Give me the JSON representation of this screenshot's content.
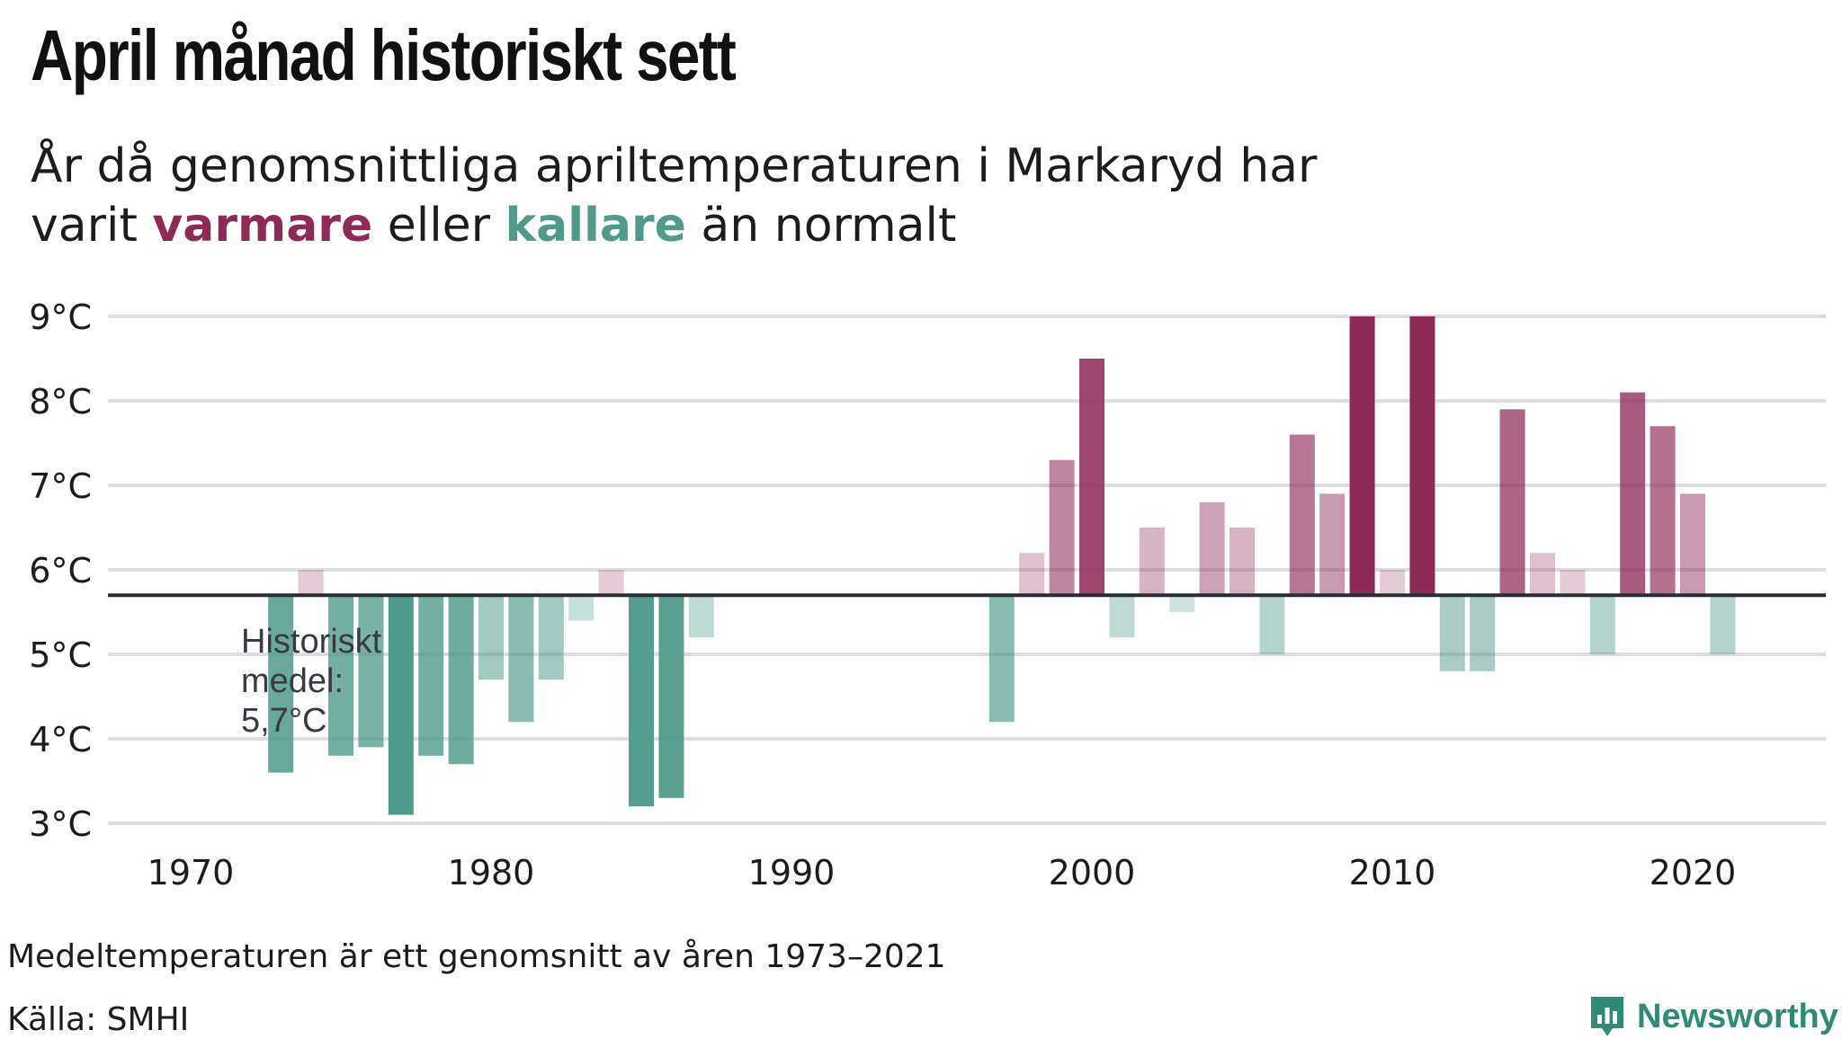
{
  "header": {
    "title": "April månad historiskt sett",
    "subtitle_line1": "År då genomsnittliga apriltemperaturen i Markaryd har",
    "subtitle_pre": "varit",
    "subtitle_warm": "varmare",
    "subtitle_mid": "eller",
    "subtitle_cold": "kallare",
    "subtitle_post": "än normalt"
  },
  "footer": {
    "note": "Medeltemperaturen är ett genomsnitt av åren 1973–2021",
    "source": "Källa: SMHI",
    "brand": "Newsworthy"
  },
  "colors": {
    "warm": "#8e2a58",
    "cold": "#4f9a8a",
    "brand": "#2f8a78",
    "grid": "#dcdde3",
    "baseline": "#2b2b35"
  },
  "chart_data": {
    "type": "bar",
    "baseline_value": 5.7,
    "annotation": [
      "Historiskt",
      "medel:",
      "5,7°C"
    ],
    "ylim": [
      3,
      9
    ],
    "yticks": [
      {
        "value": 3,
        "label": "3°C"
      },
      {
        "value": 4,
        "label": "4°C"
      },
      {
        "value": 5,
        "label": "5°C"
      },
      {
        "value": 6,
        "label": "6°C"
      },
      {
        "value": 7,
        "label": "7°C"
      },
      {
        "value": 8,
        "label": "8°C"
      },
      {
        "value": 9,
        "label": "9°C"
      }
    ],
    "xlim": [
      1967.5,
      2024.5
    ],
    "xticks": [
      {
        "value": 1970,
        "label": "1970"
      },
      {
        "value": 1980,
        "label": "1980"
      },
      {
        "value": 1990,
        "label": "1990"
      },
      {
        "value": 2000,
        "label": "2000"
      },
      {
        "value": 2010,
        "label": "2010"
      },
      {
        "value": 2020,
        "label": "2020"
      }
    ],
    "grid": true,
    "x": [
      1973,
      1974,
      1975,
      1976,
      1977,
      1978,
      1979,
      1980,
      1981,
      1982,
      1983,
      1984,
      1985,
      1986,
      1987,
      1997,
      1998,
      1999,
      2000,
      2001,
      2002,
      2003,
      2004,
      2005,
      2006,
      2007,
      2008,
      2009,
      2010,
      2011,
      2012,
      2013,
      2014,
      2015,
      2016,
      2017,
      2018,
      2019,
      2020,
      2021
    ],
    "values": [
      3.6,
      6.0,
      3.8,
      3.9,
      3.1,
      3.8,
      3.7,
      4.7,
      4.2,
      4.7,
      5.4,
      6.0,
      3.2,
      3.3,
      5.2,
      4.2,
      6.2,
      7.3,
      8.5,
      5.2,
      6.5,
      5.5,
      6.8,
      6.5,
      5.0,
      7.6,
      6.9,
      9.0,
      6.0,
      9.0,
      4.8,
      4.8,
      7.9,
      6.2,
      6.0,
      5.0,
      8.1,
      7.7,
      6.9,
      5.0
    ]
  }
}
